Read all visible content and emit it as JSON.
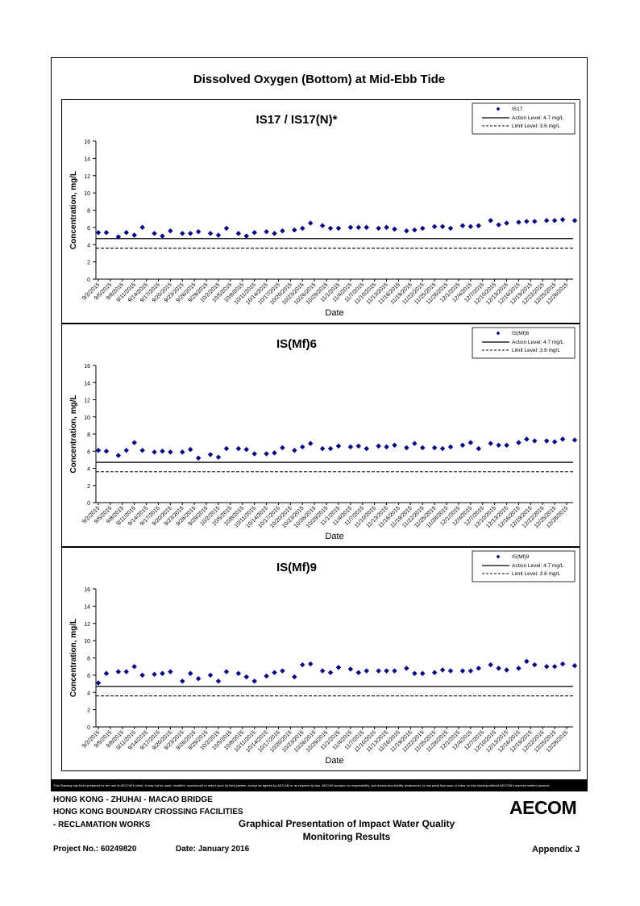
{
  "page_title": "Dissolved Oxygen (Bottom) at Mid-Ebb Tide",
  "disclaimer": "This Drawing has been prepared for the use of AECOM's client. It may not be used, modified, reproduced or relied upon by third parties, except as agreed by AECOM or as required by law. AECOM accepts no responsibility, and denies any liability whatsoever, to any party that uses or relies on this drawing without AECOM's express written consent.",
  "footer": {
    "line1": "HONG KONG - ZHUHAI - MACAO BRIDGE",
    "line2": "HONG KONG BOUNDARY CROSSING FACILITIES",
    "line3": "- RECLAMATION WORKS",
    "center_line1": "Graphical Presentation of Impact Water Quality",
    "center_line2": "Monitoring Results",
    "project": "Project No.: 60249820",
    "date": "Date: January 2016",
    "appendix": "Appendix J",
    "logo": "AECOM"
  },
  "chart_data": [
    {
      "type": "scatter",
      "title": "IS17 / IS17(N)*",
      "xlabel": "Date",
      "ylabel": "Concentration, mg/L",
      "ylim": [
        0,
        16
      ],
      "yticks": [
        0,
        2,
        4,
        6,
        8,
        10,
        12,
        14,
        16
      ],
      "xticks": [
        "9/2/2015",
        "9/5/2015",
        "9/8/2015",
        "9/11/2015",
        "9/14/2015",
        "9/17/2015",
        "9/20/2015",
        "9/23/2015",
        "9/26/2015",
        "9/29/2015",
        "10/2/2015",
        "10/5/2015",
        "10/8/2015",
        "10/11/2015",
        "10/14/2015",
        "10/17/2015",
        "10/20/2015",
        "10/23/2015",
        "10/26/2015",
        "10/29/2015",
        "11/1/2015",
        "11/4/2015",
        "11/7/2015",
        "11/10/2015",
        "11/13/2015",
        "11/16/2015",
        "11/19/2015",
        "11/22/2015",
        "11/25/2015",
        "11/28/2015",
        "12/1/2015",
        "12/4/2015",
        "12/7/2015",
        "12/10/2015",
        "12/13/2015",
        "12/16/2015",
        "12/19/2015",
        "12/22/2015",
        "12/25/2015",
        "12/28/2015"
      ],
      "grid": false,
      "legend_position": "top-right",
      "legend": [
        "IS17",
        "Action Level: 4.7 mg/L",
        "Limit Level: 3.6 mg/L"
      ],
      "action_level": 4.7,
      "limit_level": 3.6,
      "colors": {
        "points": "#000080",
        "lines": "#000000"
      },
      "series": [
        {
          "name": "IS17",
          "day": [
            0,
            2,
            5,
            7,
            9,
            11,
            14,
            16,
            18,
            21,
            23,
            25,
            28,
            30,
            32,
            35,
            37,
            39,
            42,
            44,
            46,
            49,
            51,
            53,
            56,
            58,
            60,
            63,
            65,
            67,
            70,
            72,
            74,
            77,
            79,
            81,
            84,
            86,
            88,
            91,
            93,
            95,
            98,
            100,
            102,
            105,
            107,
            109,
            112,
            114,
            116,
            119,
            121
          ],
          "values": [
            5.4,
            5.4,
            4.9,
            5.4,
            5.1,
            6.0,
            5.3,
            5.0,
            5.6,
            5.3,
            5.3,
            5.5,
            5.3,
            5.1,
            5.9,
            5.3,
            5.0,
            5.4,
            5.5,
            5.3,
            5.6,
            5.7,
            5.9,
            6.5,
            6.2,
            5.9,
            5.9,
            6.0,
            6.0,
            6.0,
            5.9,
            6.0,
            5.8,
            5.6,
            5.7,
            5.9,
            6.1,
            6.1,
            5.9,
            6.2,
            6.1,
            6.2,
            6.8,
            6.3,
            6.5,
            6.6,
            6.7,
            6.7,
            6.8,
            6.8,
            6.9,
            6.8,
            6.8
          ]
        }
      ]
    },
    {
      "type": "scatter",
      "title": "IS(Mf)6",
      "xlabel": "Date",
      "ylabel": "Concentration, mg/L",
      "ylim": [
        0,
        16
      ],
      "yticks": [
        0,
        2,
        4,
        6,
        8,
        10,
        12,
        14,
        16
      ],
      "xticks": [
        "9/2/2015",
        "9/5/2015",
        "9/8/2015",
        "9/11/2015",
        "9/14/2015",
        "9/17/2015",
        "9/20/2015",
        "9/23/2015",
        "9/26/2015",
        "9/29/2015",
        "10/2/2015",
        "10/5/2015",
        "10/8/2015",
        "10/11/2015",
        "10/14/2015",
        "10/17/2015",
        "10/20/2015",
        "10/23/2015",
        "10/26/2015",
        "10/29/2015",
        "11/1/2015",
        "11/4/2015",
        "11/7/2015",
        "11/10/2015",
        "11/13/2015",
        "11/16/2015",
        "11/19/2015",
        "11/22/2015",
        "11/25/2015",
        "11/28/2015",
        "12/1/2015",
        "12/4/2015",
        "12/7/2015",
        "12/10/2015",
        "12/13/2015",
        "12/16/2015",
        "12/19/2015",
        "12/22/2015",
        "12/25/2015",
        "12/28/2015"
      ],
      "grid": false,
      "legend_position": "top-right",
      "legend": [
        "IS(Mf)6",
        "Action Level: 4.7 mg/L",
        "Limit Level: 3.6 mg/L"
      ],
      "action_level": 4.7,
      "limit_level": 3.6,
      "colors": {
        "points": "#000080",
        "lines": "#000000"
      },
      "series": [
        {
          "name": "IS(Mf)6",
          "day": [
            0,
            2,
            5,
            7,
            9,
            11,
            14,
            16,
            18,
            21,
            23,
            25,
            28,
            30,
            32,
            35,
            37,
            39,
            42,
            44,
            46,
            49,
            51,
            53,
            56,
            58,
            60,
            63,
            65,
            67,
            70,
            72,
            74,
            77,
            79,
            81,
            84,
            86,
            88,
            91,
            93,
            95,
            98,
            100,
            102,
            105,
            107,
            109,
            112,
            114,
            116,
            119,
            121
          ],
          "values": [
            6.1,
            6.0,
            5.5,
            6.1,
            7.0,
            6.1,
            5.9,
            6.0,
            5.9,
            5.9,
            6.2,
            5.2,
            5.6,
            5.3,
            6.3,
            6.3,
            6.2,
            5.7,
            5.7,
            5.8,
            6.4,
            6.1,
            6.5,
            6.9,
            6.3,
            6.3,
            6.6,
            6.5,
            6.6,
            6.3,
            6.6,
            6.5,
            6.7,
            6.4,
            6.9,
            6.4,
            6.4,
            6.3,
            6.5,
            6.7,
            7.0,
            6.3,
            6.9,
            6.7,
            6.7,
            7.0,
            7.4,
            7.2,
            7.2,
            7.1,
            7.4,
            7.3,
            7.3
          ]
        }
      ]
    },
    {
      "type": "scatter",
      "title": "IS(Mf)9",
      "xlabel": "Date",
      "ylabel": "Concentration, mg/L",
      "ylim": [
        0,
        16
      ],
      "yticks": [
        0,
        2,
        4,
        6,
        8,
        10,
        12,
        14,
        16
      ],
      "xticks": [
        "9/2/2015",
        "9/5/2015",
        "9/8/2015",
        "9/11/2015",
        "9/14/2015",
        "9/17/2015",
        "9/20/2015",
        "9/23/2015",
        "9/26/2015",
        "9/29/2015",
        "10/2/2015",
        "10/5/2015",
        "10/8/2015",
        "10/11/2015",
        "10/14/2015",
        "10/17/2015",
        "10/20/2015",
        "10/23/2015",
        "10/26/2015",
        "10/29/2015",
        "11/1/2015",
        "11/4/2015",
        "11/7/2015",
        "11/10/2015",
        "11/13/2015",
        "11/16/2015",
        "11/19/2015",
        "11/22/2015",
        "11/25/2015",
        "11/28/2015",
        "12/1/2015",
        "12/4/2015",
        "12/7/2015",
        "12/10/2015",
        "12/13/2015",
        "12/16/2015",
        "12/19/2015",
        "12/22/2015",
        "12/25/2015",
        "12/28/2015"
      ],
      "grid": false,
      "legend_position": "top-right",
      "legend": [
        "IS(Mf)9",
        "Action Level: 4.7 mg/L",
        "Limit Level: 3.6 mg/L"
      ],
      "action_level": 4.7,
      "limit_level": 3.6,
      "colors": {
        "points": "#000080",
        "lines": "#000000"
      },
      "series": [
        {
          "name": "IS(Mf)9",
          "day": [
            0,
            2,
            5,
            7,
            9,
            11,
            14,
            16,
            18,
            21,
            23,
            25,
            28,
            30,
            32,
            35,
            37,
            39,
            42,
            44,
            46,
            49,
            51,
            53,
            56,
            58,
            60,
            63,
            65,
            67,
            70,
            72,
            74,
            77,
            79,
            81,
            84,
            86,
            88,
            91,
            93,
            95,
            98,
            100,
            102,
            105,
            107,
            109,
            112,
            114,
            116,
            119,
            121
          ],
          "values": [
            5.1,
            6.2,
            6.4,
            6.4,
            7.0,
            6.0,
            6.1,
            6.2,
            6.4,
            5.3,
            6.2,
            5.6,
            6.0,
            5.3,
            6.4,
            6.2,
            5.8,
            5.3,
            5.9,
            6.3,
            6.5,
            5.8,
            7.2,
            7.3,
            6.5,
            6.3,
            6.9,
            6.7,
            6.3,
            6.5,
            6.5,
            6.5,
            6.5,
            6.8,
            6.2,
            6.2,
            6.3,
            6.6,
            6.5,
            6.5,
            6.5,
            6.8,
            7.2,
            6.8,
            6.6,
            6.8,
            7.6,
            7.2,
            7.0,
            7.0,
            7.3,
            7.1,
            7.3
          ]
        }
      ]
    }
  ]
}
